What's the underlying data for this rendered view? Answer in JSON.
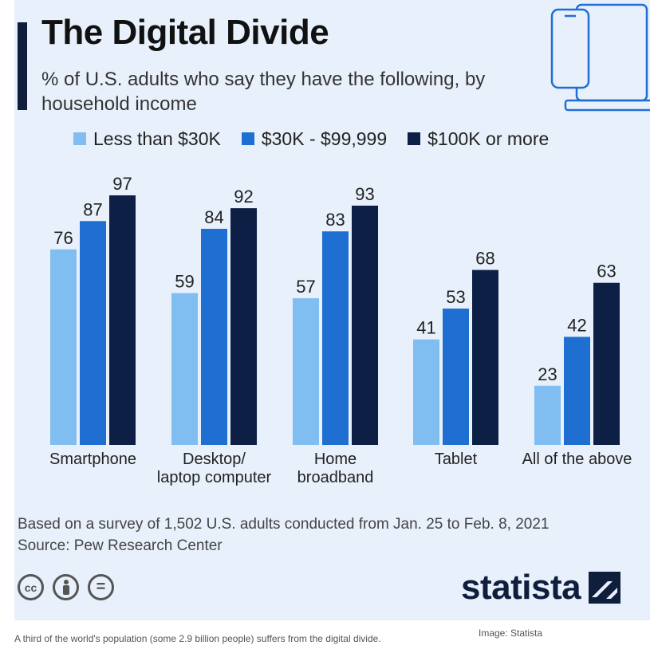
{
  "header": {
    "title": "The Digital Divide",
    "subtitle": "% of U.S. adults who say they have the following, by household income"
  },
  "colors": {
    "background": "#e8f0fb",
    "accent": "#0f1e3d",
    "series": [
      "#80bdf0",
      "#1f6fd3",
      "#0d1f45"
    ]
  },
  "chart_data": {
    "type": "bar",
    "title": "The Digital Divide",
    "subtitle": "% of U.S. adults who say they have the following, by household income",
    "xlabel": "",
    "ylabel": "",
    "ylim": [
      0,
      100
    ],
    "grid": false,
    "legend_position": "top",
    "categories": [
      [
        "Smartphone"
      ],
      [
        "Desktop/",
        "laptop computer"
      ],
      [
        "Home",
        "broadband"
      ],
      [
        "Tablet"
      ],
      [
        "All of the above"
      ]
    ],
    "series": [
      {
        "name": "Less than $30K",
        "color": "#80bdf0",
        "values": [
          76,
          59,
          57,
          41,
          23
        ]
      },
      {
        "name": "$30K - $99,999",
        "color": "#1f6fd3",
        "values": [
          87,
          84,
          83,
          53,
          42
        ]
      },
      {
        "name": "$100K or more",
        "color": "#0d1f45",
        "values": [
          97,
          92,
          93,
          68,
          63
        ]
      }
    ]
  },
  "footer": {
    "note_line1": "Based on a survey of 1,502 U.S. adults conducted from Jan. 25 to Feb. 8, 2021",
    "note_line2": "Source: Pew Research Center",
    "license_icons": [
      "creative-commons-icon",
      "attribution-icon",
      "no-derivatives-icon"
    ],
    "license_labels": [
      "cc",
      "",
      "="
    ],
    "brand": "statista"
  },
  "caption": "A third of the world's population (some 2.9 billion people) suffers from the digital divide.",
  "credit": "Image: Statista"
}
